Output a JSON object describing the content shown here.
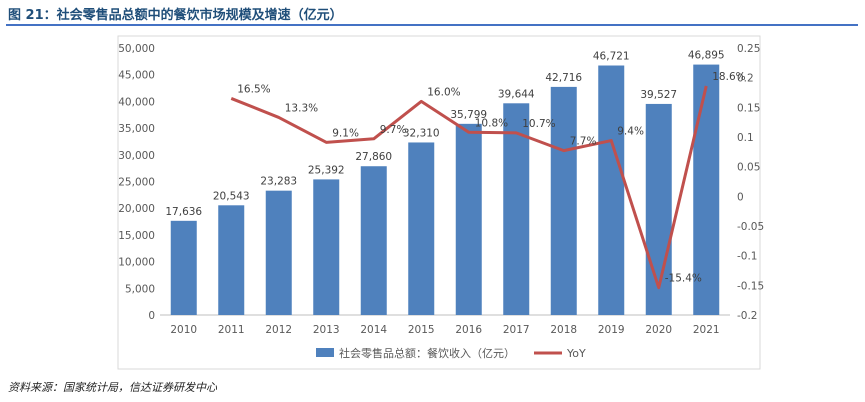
{
  "figure": {
    "title": "图 21：社会零售品总额中的餐饮市场规模及增速（亿元）",
    "source": "资料来源：国家统计局，信达证券研发中心"
  },
  "chart_data": {
    "type": "bar",
    "categories": [
      "2010",
      "2011",
      "2012",
      "2013",
      "2014",
      "2015",
      "2016",
      "2017",
      "2018",
      "2019",
      "2020",
      "2021"
    ],
    "series": [
      {
        "name": "社会零售品总额：餐饮收入（亿元）",
        "type": "bar",
        "axis": "left",
        "color": "#4f81bd",
        "values": [
          17636,
          20543,
          23283,
          25392,
          27860,
          32310,
          35799,
          39644,
          42716,
          46721,
          39527,
          46895
        ],
        "labels": [
          "17,636",
          "20,543",
          "23,283",
          "25,392",
          "27,860",
          "32,310",
          "35,799",
          "39,644",
          "42,716",
          "46,721",
          "39,527",
          "46,895"
        ]
      },
      {
        "name": "YoY",
        "type": "line",
        "axis": "right",
        "color": "#c0504d",
        "values": [
          null,
          0.165,
          0.133,
          0.091,
          0.097,
          0.16,
          0.108,
          0.107,
          0.077,
          0.094,
          -0.154,
          0.186
        ],
        "labels": [
          null,
          "16.5%",
          "13.3%",
          "9.1%",
          "9.7%",
          "16.0%",
          "10.8%",
          "10.7%",
          "7.7%",
          "9.4%",
          "-15.4%",
          "18.6%"
        ]
      }
    ],
    "y_left": {
      "ylim": [
        0,
        50000
      ],
      "ticks": [
        0,
        5000,
        10000,
        15000,
        20000,
        25000,
        30000,
        35000,
        40000,
        45000,
        50000
      ],
      "tick_labels": [
        "0",
        "5,000",
        "10,000",
        "15,000",
        "20,000",
        "25,000",
        "30,000",
        "35,000",
        "40,000",
        "45,000",
        "50,000"
      ]
    },
    "y_right": {
      "ylim": [
        -0.2,
        0.25
      ],
      "ticks": [
        -0.2,
        -0.15,
        -0.1,
        -0.05,
        0,
        0.05,
        0.1,
        0.15,
        0.2,
        0.25
      ],
      "tick_labels": [
        "-0.2",
        "-0.15",
        "-0.1",
        "-0.05",
        "0",
        "0.05",
        "0.1",
        "0.15",
        "0.2",
        "0.25"
      ]
    },
    "grid": false,
    "legend": "bottom-center"
  }
}
